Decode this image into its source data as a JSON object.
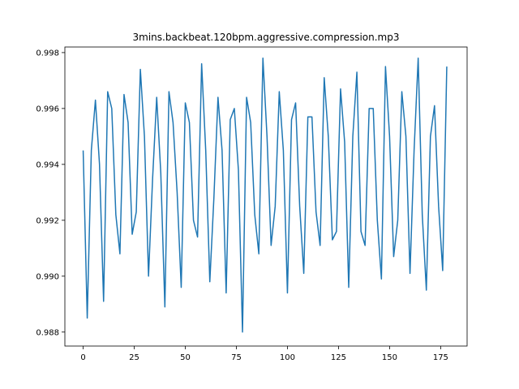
{
  "chart_data": {
    "type": "line",
    "title": "3mins.backbeat.120bpm.aggressive.compression.mp3",
    "xlabel": "",
    "ylabel": "",
    "xlim": [
      -8.95,
      187.95
    ],
    "ylim": [
      0.9875,
      0.9982
    ],
    "grid": false,
    "xticks": [
      0,
      25,
      50,
      75,
      100,
      125,
      150,
      175
    ],
    "xtick_labels": [
      "0",
      "25",
      "50",
      "75",
      "100",
      "125",
      "150",
      "175"
    ],
    "yticks": [
      0.988,
      0.99,
      0.992,
      0.994,
      0.996,
      0.998
    ],
    "ytick_labels": [
      "0.988",
      "0.990",
      "0.992",
      "0.994",
      "0.996",
      "0.998"
    ],
    "series": [
      {
        "color": "#1f77b4",
        "x": [
          0,
          2,
          4,
          6,
          8,
          10,
          12,
          14,
          16,
          18,
          20,
          22,
          24,
          26,
          28,
          30,
          32,
          34,
          36,
          38,
          40,
          42,
          44,
          46,
          48,
          50,
          52,
          54,
          56,
          58,
          60,
          62,
          64,
          66,
          68,
          70,
          72,
          74,
          76,
          78,
          80,
          82,
          84,
          86,
          88,
          90,
          92,
          94,
          96,
          98,
          100,
          102,
          104,
          106,
          108,
          110,
          112,
          114,
          116,
          118,
          120,
          122,
          124,
          126,
          128,
          130,
          132,
          134,
          136,
          138,
          140,
          142,
          144,
          146,
          148,
          150,
          152,
          154,
          156,
          158,
          160,
          162,
          164,
          166,
          168,
          170,
          172,
          174,
          176,
          178
        ],
        "y": [
          0.9945,
          0.9885,
          0.9945,
          0.9963,
          0.994,
          0.9891,
          0.9966,
          0.996,
          0.9922,
          0.9908,
          0.9965,
          0.9955,
          0.9915,
          0.9923,
          0.9974,
          0.995,
          0.99,
          0.9935,
          0.9964,
          0.9937,
          0.9889,
          0.9966,
          0.9955,
          0.993,
          0.9896,
          0.9962,
          0.9955,
          0.992,
          0.9914,
          0.9976,
          0.9945,
          0.9898,
          0.9928,
          0.9964,
          0.9945,
          0.9894,
          0.9956,
          0.996,
          0.9938,
          0.988,
          0.9964,
          0.9955,
          0.9922,
          0.9908,
          0.9978,
          0.995,
          0.9911,
          0.9925,
          0.9966,
          0.9945,
          0.9894,
          0.9956,
          0.9962,
          0.9925,
          0.9901,
          0.9957,
          0.9957,
          0.9923,
          0.9911,
          0.9971,
          0.995,
          0.9913,
          0.9916,
          0.9967,
          0.9948,
          0.9896,
          0.995,
          0.9973,
          0.9916,
          0.9911,
          0.996,
          0.996,
          0.992,
          0.9899,
          0.9975,
          0.995,
          0.9907,
          0.992,
          0.9966,
          0.995,
          0.9901,
          0.9945,
          0.9978,
          0.9922,
          0.9895,
          0.995,
          0.9961,
          0.9925,
          0.9902,
          0.9975
        ]
      }
    ]
  }
}
